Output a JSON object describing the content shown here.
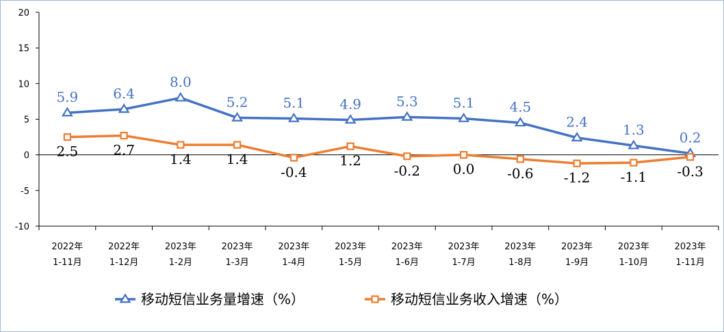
{
  "chart_data": {
    "type": "line",
    "categories": [
      [
        "2022年",
        "1-11月"
      ],
      [
        "2022年",
        "1-12月"
      ],
      [
        "2023年",
        "1-2月"
      ],
      [
        "2023年",
        "1-3月"
      ],
      [
        "2023年",
        "1-4月"
      ],
      [
        "2023年",
        "1-5月"
      ],
      [
        "2023年",
        "1-6月"
      ],
      [
        "2023年",
        "1-7月"
      ],
      [
        "2023年",
        "1-8月"
      ],
      [
        "2023年",
        "1-9月"
      ],
      [
        "2023年",
        "1-10月"
      ],
      [
        "2023年",
        "1-11月"
      ]
    ],
    "series": [
      {
        "name": "移动短信业务量增速（%）",
        "values": [
          5.9,
          6.4,
          8.0,
          5.2,
          5.1,
          4.9,
          5.3,
          5.1,
          4.5,
          2.4,
          1.3,
          0.2
        ],
        "labels": [
          "5.9",
          "6.4",
          "8.0",
          "5.2",
          "5.1",
          "4.9",
          "5.3",
          "5.1",
          "4.5",
          "2.4",
          "1.3",
          "0.2"
        ],
        "color": "#4472c4",
        "marker": "triangle"
      },
      {
        "name": "移动短信业务收入增速（%）",
        "values": [
          2.5,
          2.7,
          1.4,
          1.4,
          -0.4,
          1.2,
          -0.2,
          0.0,
          -0.6,
          -1.2,
          -1.1,
          -0.3
        ],
        "labels": [
          "2.5",
          "2.7",
          "1.4",
          "1.4",
          "-0.4",
          "1.2",
          "-0.2",
          "0.0",
          "-0.6",
          "-1.2",
          "-1.1",
          "-0.3"
        ],
        "color": "#ed7d31",
        "marker": "square"
      }
    ],
    "yticks": [
      "20",
      "15",
      "10",
      "5",
      "0",
      "-5",
      "-10"
    ],
    "ylim": [
      -10,
      20
    ],
    "grid": false,
    "legend_position": "bottom"
  }
}
